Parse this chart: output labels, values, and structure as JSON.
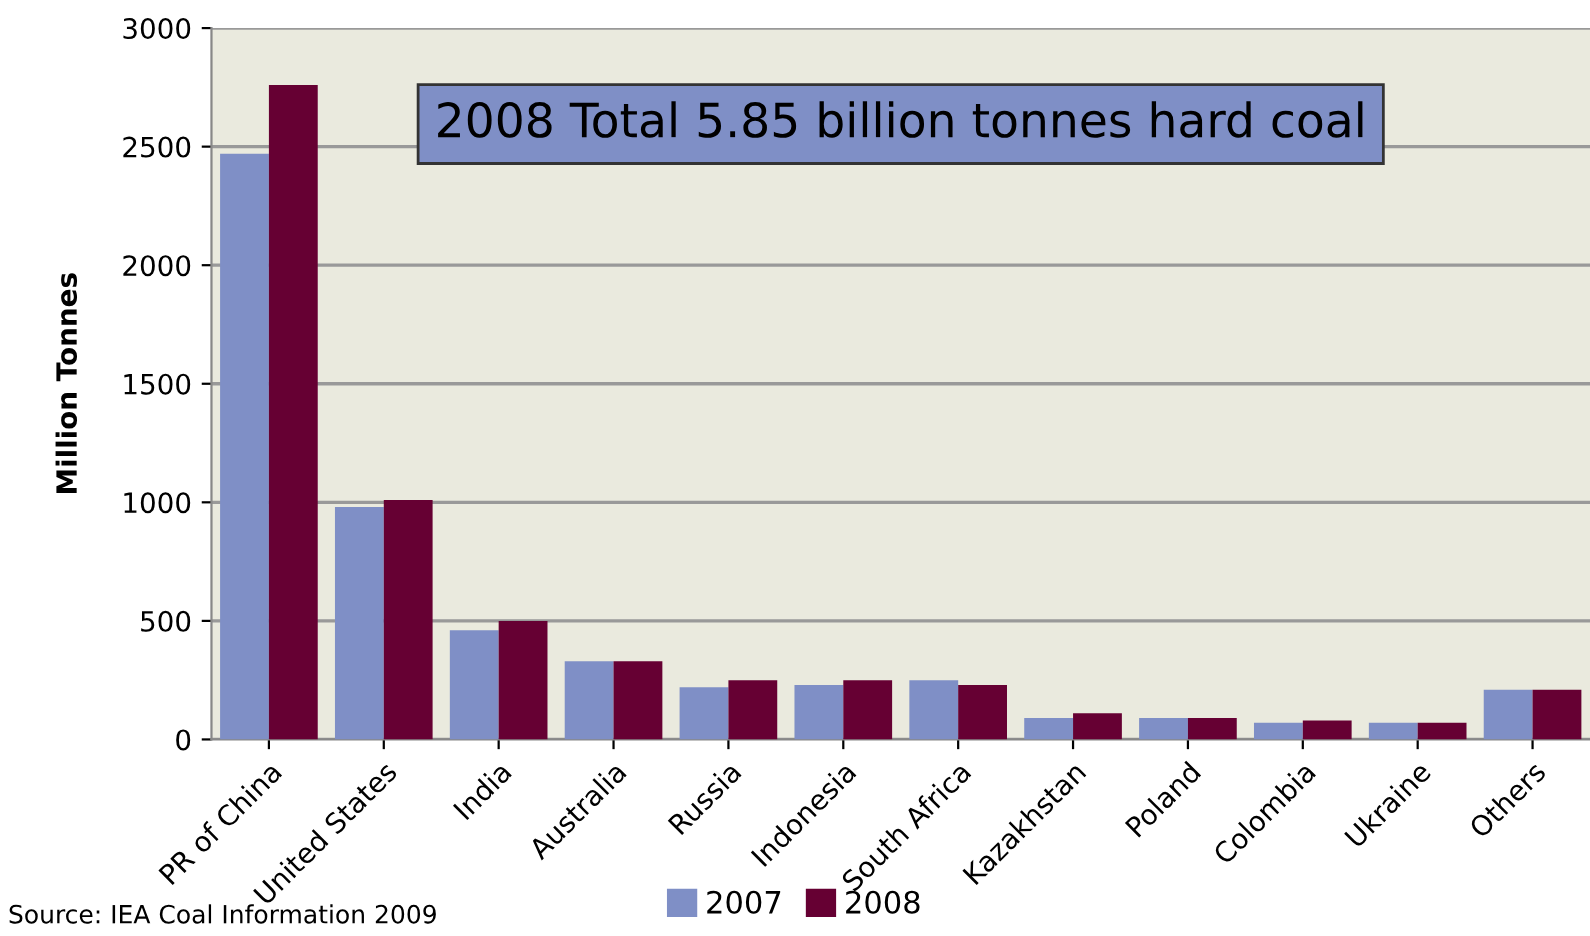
{
  "chart_data": {
    "type": "bar",
    "ylabel": "Million Tonnes",
    "categories": [
      "PR of China",
      "United States",
      "India",
      "Australia",
      "Russia",
      "Indonesia",
      "South Africa",
      "Kazakhstan",
      "Poland",
      "Colombia",
      "Ukraine",
      "Others"
    ],
    "series": [
      {
        "name": "2007",
        "color": "#7f8fc6",
        "values": [
          2470,
          980,
          460,
          330,
          220,
          230,
          250,
          90,
          90,
          70,
          70,
          210
        ]
      },
      {
        "name": "2008",
        "color": "#660033",
        "values": [
          2760,
          1010,
          500,
          330,
          250,
          250,
          230,
          110,
          90,
          80,
          70,
          210
        ]
      }
    ],
    "ylim": [
      0,
      3000
    ],
    "yticks": [
      0,
      500,
      1000,
      1500,
      2000,
      2500,
      3000
    ],
    "grid": "y",
    "legend": "bottom",
    "annotations": [
      "2008 Total 5.85 billion tonnes hard coal",
      "Source: IEA Coal Information 2009"
    ]
  }
}
